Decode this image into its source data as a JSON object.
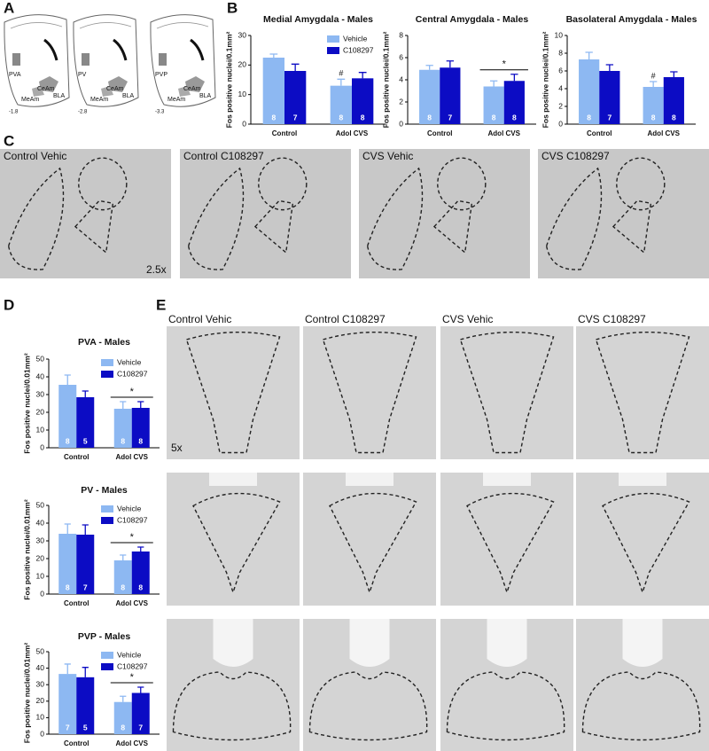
{
  "panel_labels": [
    "A",
    "B",
    "C",
    "D",
    "E"
  ],
  "panel_A": {
    "sections": [
      {
        "labels": [
          "PVA",
          "CeAm",
          "MeAm",
          "BLA"
        ],
        "bregma": "-1.8"
      },
      {
        "labels": [
          "PV",
          "CeAm",
          "MeAm",
          "BLA"
        ],
        "bregma": "-2.8"
      },
      {
        "labels": [
          "PVP",
          "CeAm",
          "MeAm",
          "BLA"
        ],
        "bregma": "-3.3"
      }
    ]
  },
  "panel_C": {
    "labels": [
      "Control Vehic",
      "Control C108297",
      "CVS Vehic",
      "CVS C108297"
    ],
    "magnification": "2.5x"
  },
  "panel_E": {
    "labels": [
      "Control Vehic",
      "Control C108297",
      "CVS Vehic",
      "CVS C108297"
    ],
    "magnification": "5x"
  },
  "chart_data": [
    {
      "type": "bar",
      "title": "Medial Amygdala - Males",
      "y_label": "Fos positive nuclei/0.1mm²",
      "categories": [
        "Control",
        "Adol CVS"
      ],
      "ylim": [
        0,
        30
      ],
      "yticks": [
        0,
        10,
        20,
        30
      ],
      "legend": "top-right",
      "series": [
        {
          "name": "Vehicle",
          "color": "#8db8f2",
          "values": [
            22.5,
            13
          ],
          "errors": [
            1.2,
            2.2
          ],
          "n": [
            8,
            8
          ]
        },
        {
          "name": "C108297",
          "color": "#0c0cc4",
          "values": [
            18,
            15.5
          ],
          "errors": [
            2.3,
            2
          ],
          "n": [
            7,
            8
          ]
        }
      ],
      "annotations": [
        {
          "text": "#",
          "category": "Adol CVS",
          "series": "Vehicle"
        }
      ]
    },
    {
      "type": "bar",
      "title": "Central Amygdala - Males",
      "y_label": "Fos positive nuclei/0.1mm²",
      "categories": [
        "Control",
        "Adol CVS"
      ],
      "ylim": [
        0,
        8
      ],
      "yticks": [
        0,
        2,
        4,
        6,
        8
      ],
      "series": [
        {
          "name": "Vehicle",
          "color": "#8db8f2",
          "values": [
            4.9,
            3.4
          ],
          "errors": [
            0.4,
            0.5
          ],
          "n": [
            8,
            8
          ]
        },
        {
          "name": "C108297",
          "color": "#0c0cc4",
          "values": [
            5.1,
            3.9
          ],
          "errors": [
            0.6,
            0.6
          ],
          "n": [
            7,
            8
          ]
        }
      ],
      "annotations": [
        {
          "text": "*",
          "category": "Adol CVS"
        }
      ]
    },
    {
      "type": "bar",
      "title": "Basolateral Amygdala - Males",
      "y_label": "Fos positive nuclei/0.1mm²",
      "categories": [
        "Control",
        "Adol CVS"
      ],
      "ylim": [
        0,
        10
      ],
      "yticks": [
        0,
        2,
        4,
        6,
        8,
        10
      ],
      "series": [
        {
          "name": "Vehicle",
          "color": "#8db8f2",
          "values": [
            7.3,
            4.2
          ],
          "errors": [
            0.8,
            0.6
          ],
          "n": [
            8,
            8
          ]
        },
        {
          "name": "C108297",
          "color": "#0c0cc4",
          "values": [
            6.0,
            5.3
          ],
          "errors": [
            0.7,
            0.6
          ],
          "n": [
            7,
            8
          ]
        }
      ],
      "annotations": [
        {
          "text": "#",
          "category": "Adol CVS",
          "series": "Vehicle"
        }
      ]
    },
    {
      "type": "bar",
      "title": "PVA - Males",
      "y_label": "Fos positive nuclei/0.01mm²",
      "categories": [
        "Control",
        "Adol CVS"
      ],
      "ylim": [
        0,
        50
      ],
      "yticks": [
        0,
        10,
        20,
        30,
        40,
        50
      ],
      "legend": "top-right",
      "series": [
        {
          "name": "Vehicle",
          "color": "#8db8f2",
          "values": [
            35.5,
            22
          ],
          "errors": [
            5.5,
            4
          ],
          "n": [
            8,
            8
          ]
        },
        {
          "name": "C108297",
          "color": "#0c0cc4",
          "values": [
            28.5,
            22.5
          ],
          "errors": [
            3.5,
            3.5
          ],
          "n": [
            5,
            8
          ]
        }
      ],
      "annotations": [
        {
          "text": "*",
          "category": "Adol CVS"
        }
      ]
    },
    {
      "type": "bar",
      "title": "PV - Males",
      "y_label": "Fos positive nuclei/0.01mm²",
      "categories": [
        "Control",
        "Adol CVS"
      ],
      "ylim": [
        0,
        50
      ],
      "yticks": [
        0,
        10,
        20,
        30,
        40,
        50
      ],
      "legend": "top-right",
      "series": [
        {
          "name": "Vehicle",
          "color": "#8db8f2",
          "values": [
            34,
            19
          ],
          "errors": [
            5.5,
            3
          ],
          "n": [
            8,
            8
          ]
        },
        {
          "name": "C108297",
          "color": "#0c0cc4",
          "values": [
            33.5,
            24
          ],
          "errors": [
            5.5,
            2.5
          ],
          "n": [
            7,
            8
          ]
        }
      ],
      "annotations": [
        {
          "text": "*",
          "category": "Adol CVS"
        }
      ]
    },
    {
      "type": "bar",
      "title": "PVP - Males",
      "y_label": "Fos positive nuclei/0.01mm²",
      "categories": [
        "Control",
        "Adol CVS"
      ],
      "ylim": [
        0,
        50
      ],
      "yticks": [
        0,
        10,
        20,
        30,
        40,
        50
      ],
      "legend": "top-right",
      "series": [
        {
          "name": "Vehicle",
          "color": "#8db8f2",
          "values": [
            36.5,
            19.5
          ],
          "errors": [
            6,
            3.5
          ],
          "n": [
            7,
            8
          ]
        },
        {
          "name": "C108297",
          "color": "#0c0cc4",
          "values": [
            34.5,
            25
          ],
          "errors": [
            6,
            3.5
          ],
          "n": [
            5,
            7
          ]
        }
      ],
      "annotations": [
        {
          "text": "*",
          "category": "Adol CVS"
        }
      ]
    }
  ]
}
